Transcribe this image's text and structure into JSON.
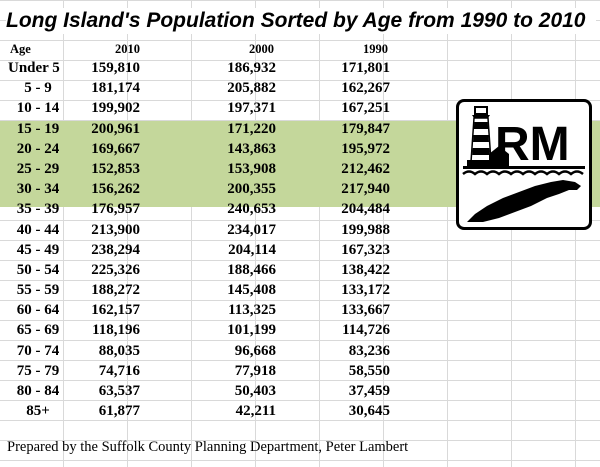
{
  "title": "Long Island's Population Sorted by Age from 1990 to 2010",
  "columns": {
    "age": "Age",
    "y2010": "2010",
    "y2000": "2000",
    "y1990": "1990"
  },
  "rows": [
    {
      "age": "Under 5",
      "y2010": "159,810",
      "y2000": "186,932",
      "y1990": "171,801"
    },
    {
      "age": "5 - 9",
      "y2010": "181,174",
      "y2000": "205,882",
      "y1990": "162,267"
    },
    {
      "age": "10 - 14",
      "y2010": "199,902",
      "y2000": "197,371",
      "y1990": "167,251"
    },
    {
      "age": "15 - 19",
      "y2010": "200,961",
      "y2000": "171,220",
      "y1990": "179,847"
    },
    {
      "age": "20 - 24",
      "y2010": "169,667",
      "y2000": "143,863",
      "y1990": "195,972"
    },
    {
      "age": "25 - 29",
      "y2010": "152,853",
      "y2000": "153,908",
      "y1990": "212,462"
    },
    {
      "age": "30 - 34",
      "y2010": "156,262",
      "y2000": "200,355",
      "y1990": "217,940"
    },
    {
      "age": "35 - 39",
      "y2010": "176,957",
      "y2000": "240,653",
      "y1990": "204,484"
    },
    {
      "age": "40 - 44",
      "y2010": "213,900",
      "y2000": "234,017",
      "y1990": "199,988"
    },
    {
      "age": "45 - 49",
      "y2010": "238,294",
      "y2000": "204,114",
      "y1990": "167,323"
    },
    {
      "age": "50 - 54",
      "y2010": "225,326",
      "y2000": "188,466",
      "y1990": "138,422"
    },
    {
      "age": "55 - 59",
      "y2010": "188,272",
      "y2000": "145,408",
      "y1990": "133,172"
    },
    {
      "age": "60 - 64",
      "y2010": "162,157",
      "y2000": "113,325",
      "y1990": "133,667"
    },
    {
      "age": "65 - 69",
      "y2010": "118,196",
      "y2000": "101,199",
      "y1990": "114,726"
    },
    {
      "age": "70 - 74",
      "y2010": "88,035",
      "y2000": "96,668",
      "y1990": "83,236"
    },
    {
      "age": "75 - 79",
      "y2010": "74,716",
      "y2000": "77,918",
      "y1990": "58,550"
    },
    {
      "age": "80 - 84",
      "y2010": "63,537",
      "y2000": "50,403",
      "y1990": "37,459"
    },
    {
      "age": "85+",
      "y2010": "61,877",
      "y2000": "42,211",
      "y1990": "30,645"
    }
  ],
  "highlighted_rows": [
    "15 - 19",
    "20 - 24",
    "25 - 29",
    "30 - 34"
  ],
  "highlight_color": "#c4d79b",
  "footer": "Prepared by the Suffolk County Planning Department, Peter Lambert",
  "logo": {
    "text": "RM",
    "icon": "lighthouse-long-island-logo"
  }
}
